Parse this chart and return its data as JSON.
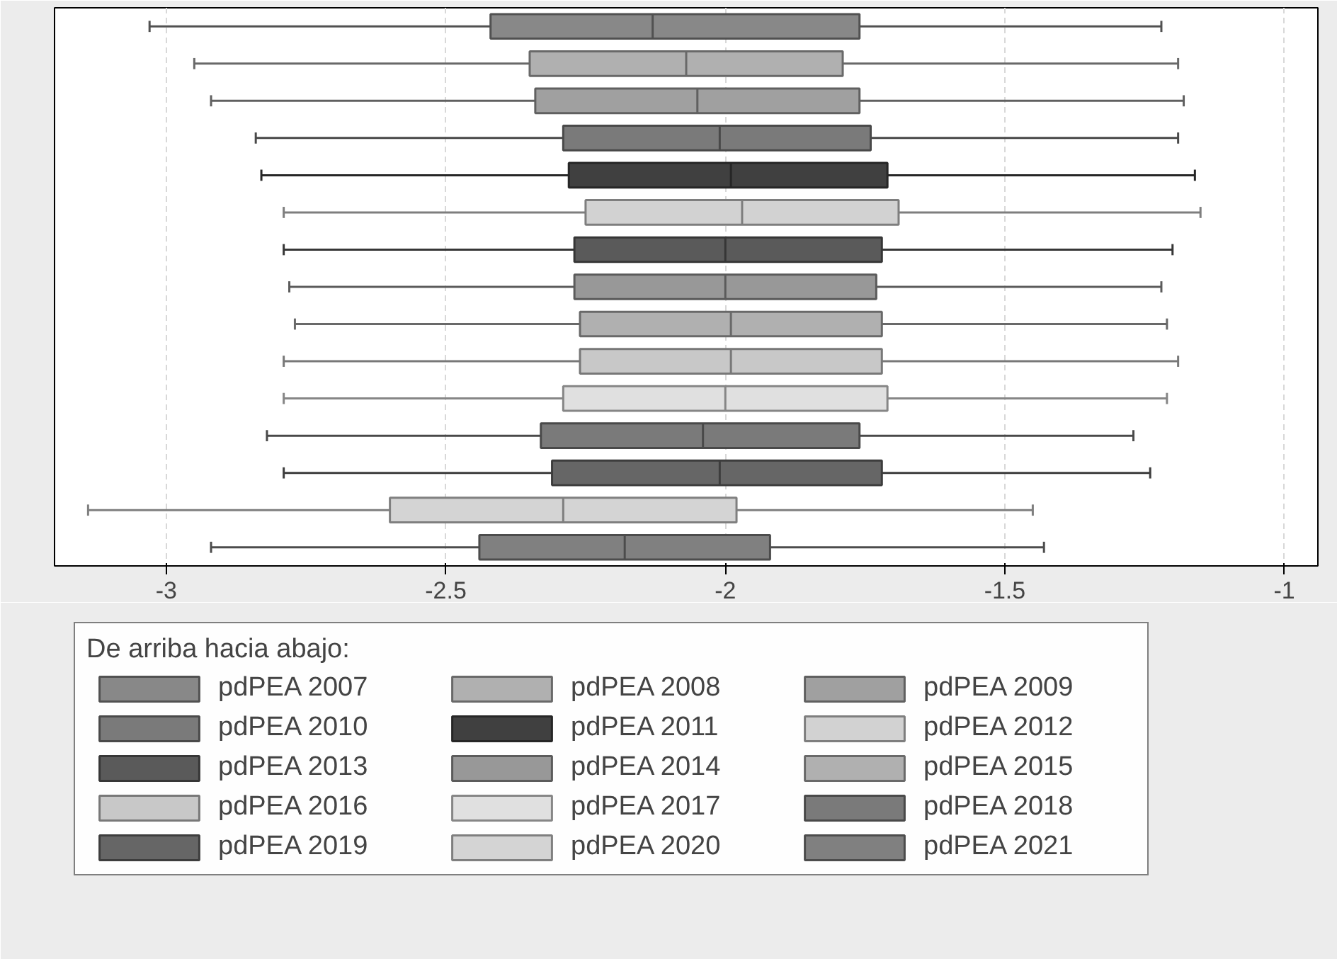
{
  "chart_data": {
    "type": "box",
    "orientation": "horizontal",
    "legend_title": "De arriba hacia abajo:",
    "categories": [
      null,
      null,
      null,
      null,
      null,
      null,
      null,
      null,
      null,
      null,
      null,
      null,
      null,
      null,
      null
    ],
    "xlim": [
      -3.2,
      -0.94
    ],
    "xticks": [
      -3,
      -2.5,
      -2,
      -1.5,
      -1
    ],
    "grid": "x",
    "legend": "bottom",
    "tick_labels": "x",
    "series": [
      {
        "name": "pdPEA 2007",
        "color": "#888888",
        "boxes": [
          {
            "low": -3.03,
            "q1": -2.42,
            "median": -2.13,
            "q3": -1.76,
            "high": -1.22
          },
          null,
          null,
          null,
          null,
          null,
          null,
          null,
          null,
          null,
          null,
          null,
          null,
          null,
          null
        ]
      },
      {
        "name": "pdPEA 2008",
        "color": "#b0b0b0",
        "boxes": [
          null,
          {
            "low": -2.95,
            "q1": -2.35,
            "median": -2.07,
            "q3": -1.79,
            "high": -1.19
          },
          null,
          null,
          null,
          null,
          null,
          null,
          null,
          null,
          null,
          null,
          null,
          null,
          null
        ]
      },
      {
        "name": "pdPEA 2009",
        "color": "#a0a0a0",
        "boxes": [
          null,
          null,
          {
            "low": -2.92,
            "q1": -2.34,
            "median": -2.05,
            "q3": -1.76,
            "high": -1.18
          },
          null,
          null,
          null,
          null,
          null,
          null,
          null,
          null,
          null,
          null,
          null,
          null
        ]
      },
      {
        "name": "pdPEA 2010",
        "color": "#7a7a7a",
        "boxes": [
          null,
          null,
          null,
          {
            "low": -2.84,
            "q1": -2.29,
            "median": -2.01,
            "q3": -1.74,
            "high": -1.19
          },
          null,
          null,
          null,
          null,
          null,
          null,
          null,
          null,
          null,
          null,
          null
        ]
      },
      {
        "name": "pdPEA 2011",
        "color": "#404040",
        "boxes": [
          null,
          null,
          null,
          null,
          {
            "low": -2.83,
            "q1": -2.28,
            "median": -1.99,
            "q3": -1.71,
            "high": -1.16
          },
          null,
          null,
          null,
          null,
          null,
          null,
          null,
          null,
          null,
          null
        ]
      },
      {
        "name": "pdPEA 2012",
        "color": "#d2d2d2",
        "boxes": [
          null,
          null,
          null,
          null,
          null,
          {
            "low": -2.79,
            "q1": -2.25,
            "median": -1.97,
            "q3": -1.69,
            "high": -1.15
          },
          null,
          null,
          null,
          null,
          null,
          null,
          null,
          null,
          null
        ]
      },
      {
        "name": "pdPEA 2013",
        "color": "#5a5a5a",
        "boxes": [
          null,
          null,
          null,
          null,
          null,
          null,
          {
            "low": -2.79,
            "q1": -2.27,
            "median": -2.0,
            "q3": -1.72,
            "high": -1.2
          },
          null,
          null,
          null,
          null,
          null,
          null,
          null,
          null
        ]
      },
      {
        "name": "pdPEA 2014",
        "color": "#989898",
        "boxes": [
          null,
          null,
          null,
          null,
          null,
          null,
          null,
          {
            "low": -2.78,
            "q1": -2.27,
            "median": -2.0,
            "q3": -1.73,
            "high": -1.22
          },
          null,
          null,
          null,
          null,
          null,
          null,
          null
        ]
      },
      {
        "name": "pdPEA 2015",
        "color": "#b0b0b0",
        "boxes": [
          null,
          null,
          null,
          null,
          null,
          null,
          null,
          null,
          {
            "low": -2.77,
            "q1": -2.26,
            "median": -1.99,
            "q3": -1.72,
            "high": -1.21
          },
          null,
          null,
          null,
          null,
          null,
          null
        ]
      },
      {
        "name": "pdPEA 2016",
        "color": "#c8c8c8",
        "boxes": [
          null,
          null,
          null,
          null,
          null,
          null,
          null,
          null,
          null,
          {
            "low": -2.79,
            "q1": -2.26,
            "median": -1.99,
            "q3": -1.72,
            "high": -1.19
          },
          null,
          null,
          null,
          null,
          null
        ]
      },
      {
        "name": "pdPEA 2017",
        "color": "#e0e0e0",
        "boxes": [
          null,
          null,
          null,
          null,
          null,
          null,
          null,
          null,
          null,
          null,
          {
            "low": -2.79,
            "q1": -2.29,
            "median": -2.0,
            "q3": -1.71,
            "high": -1.21
          },
          null,
          null,
          null,
          null
        ]
      },
      {
        "name": "pdPEA 2018",
        "color": "#7a7a7a",
        "boxes": [
          null,
          null,
          null,
          null,
          null,
          null,
          null,
          null,
          null,
          null,
          null,
          {
            "low": -2.82,
            "q1": -2.33,
            "median": -2.04,
            "q3": -1.76,
            "high": -1.27
          },
          null,
          null,
          null
        ]
      },
      {
        "name": "pdPEA 2019",
        "color": "#666666",
        "boxes": [
          null,
          null,
          null,
          null,
          null,
          null,
          null,
          null,
          null,
          null,
          null,
          null,
          {
            "low": -2.79,
            "q1": -2.31,
            "median": -2.01,
            "q3": -1.72,
            "high": -1.24
          },
          null,
          null
        ]
      },
      {
        "name": "pdPEA 2020",
        "color": "#d4d4d4",
        "boxes": [
          null,
          null,
          null,
          null,
          null,
          null,
          null,
          null,
          null,
          null,
          null,
          null,
          null,
          {
            "low": -3.14,
            "q1": -2.6,
            "median": -2.29,
            "q3": -1.98,
            "high": -1.45
          },
          null
        ]
      },
      {
        "name": "pdPEA 2021",
        "color": "#808080",
        "boxes": [
          null,
          null,
          null,
          null,
          null,
          null,
          null,
          null,
          null,
          null,
          null,
          null,
          null,
          null,
          {
            "low": -2.92,
            "q1": -2.44,
            "median": -2.18,
            "q3": -1.92,
            "high": -1.43
          }
        ]
      }
    ]
  }
}
